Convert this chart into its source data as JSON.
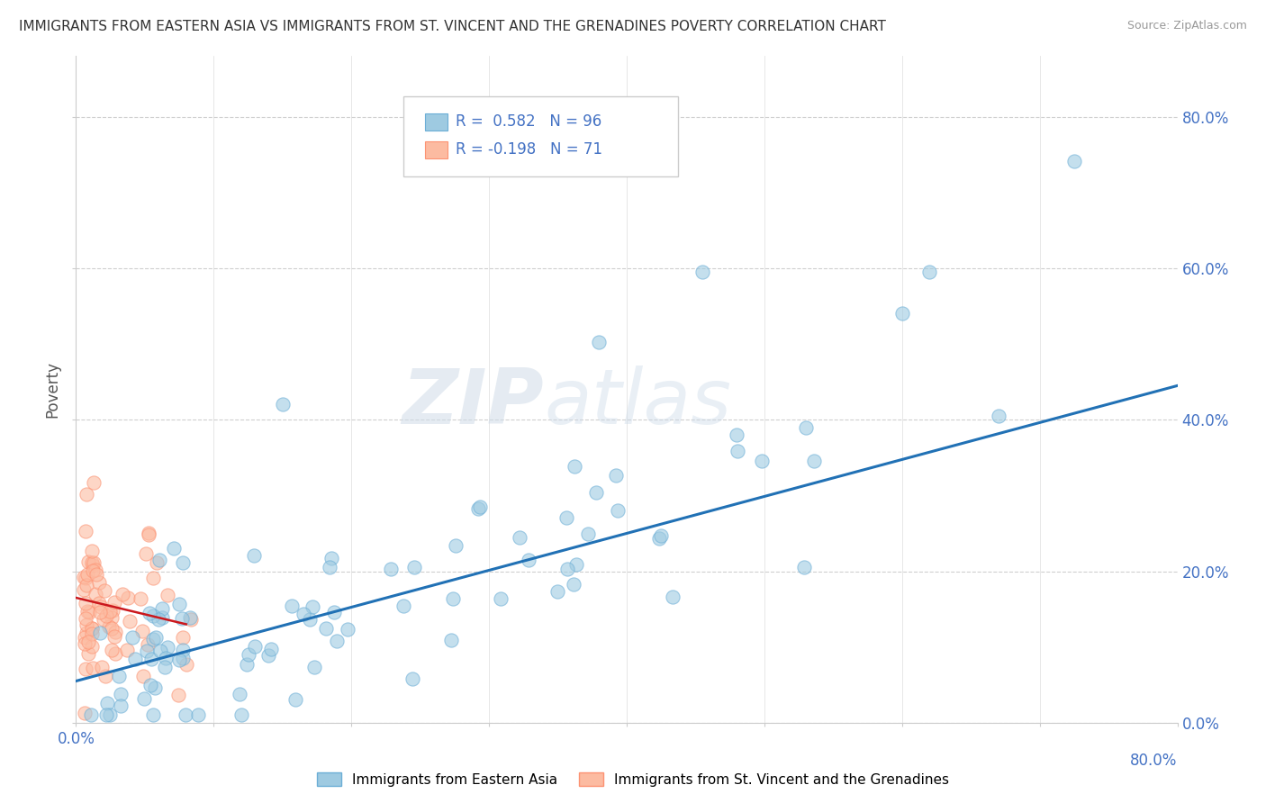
{
  "title": "IMMIGRANTS FROM EASTERN ASIA VS IMMIGRANTS FROM ST. VINCENT AND THE GRENADINES POVERTY CORRELATION CHART",
  "source": "Source: ZipAtlas.com",
  "ylabel": "Poverty",
  "y_tick_labels": [
    "0.0%",
    "20.0%",
    "40.0%",
    "60.0%",
    "80.0%"
  ],
  "y_tick_values": [
    0.0,
    0.2,
    0.4,
    0.6,
    0.8
  ],
  "xlim": [
    0.0,
    0.8
  ],
  "ylim": [
    0.0,
    0.88
  ],
  "legend_R_blue": "R =  0.582",
  "legend_N_blue": "N = 96",
  "legend_R_pink": "R = -0.198",
  "legend_N_pink": "N = 71",
  "blue_color": "#9ecae1",
  "pink_color": "#fcbba1",
  "blue_edge_color": "#6baed6",
  "pink_edge_color": "#fc9272",
  "blue_line_color": "#2171b5",
  "pink_line_color": "#cb181d",
  "watermark_zip": "ZIP",
  "watermark_atlas": "atlas",
  "bg_color": "#ffffff",
  "grid_color": "#bbbbbb",
  "blue_trend_x": [
    0.0,
    0.8
  ],
  "blue_trend_y": [
    0.055,
    0.445
  ],
  "pink_trend_x": [
    0.0,
    0.08
  ],
  "pink_trend_y": [
    0.165,
    0.13
  ],
  "title_color": "#333333",
  "source_color": "#999999",
  "axis_label_color": "#4472c4",
  "ylabel_color": "#555555",
  "legend_text_color": "#4472c4"
}
